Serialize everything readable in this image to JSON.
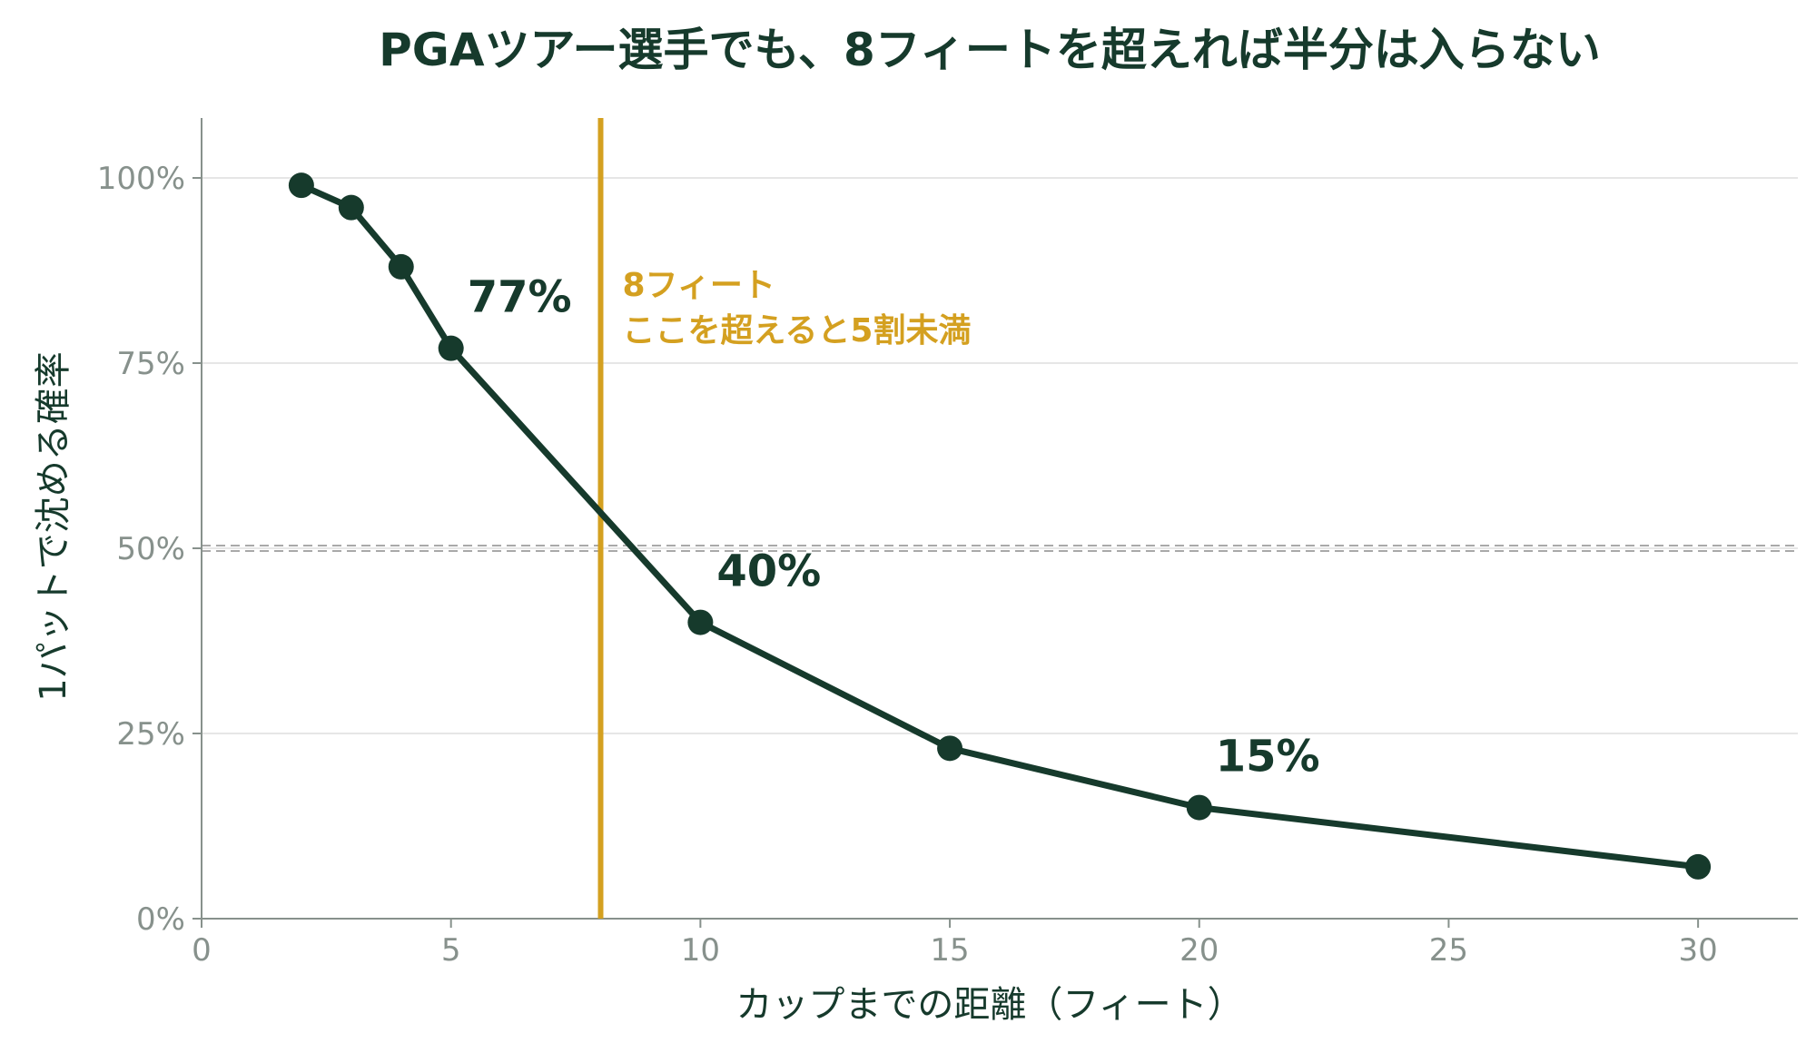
{
  "chart_data": {
    "type": "line",
    "title": "PGAツアー選手でも、8フィートを超えれば半分は入らない",
    "xlabel": "カップまでの距離（フィート）",
    "ylabel": "1パットで沈める確率",
    "xlim": [
      0,
      32
    ],
    "ylim": [
      0,
      108
    ],
    "x_ticks": [
      0,
      5,
      10,
      15,
      20,
      25,
      30
    ],
    "y_ticks": [
      0,
      25,
      50,
      75,
      100
    ],
    "y_tick_labels": [
      "0%",
      "25%",
      "50%",
      "75%",
      "100%"
    ],
    "grid": "horizontal",
    "series": [
      {
        "x": [
          2,
          3,
          4,
          5,
          10,
          15,
          20,
          30
        ],
        "y": [
          99,
          96,
          88,
          77,
          40,
          23,
          15,
          7
        ]
      }
    ],
    "data_labels": [
      {
        "x": 5,
        "y": 77,
        "text": "77%"
      },
      {
        "x": 10,
        "y": 40,
        "text": "40%"
      },
      {
        "x": 20,
        "y": 15,
        "text": "15%"
      }
    ],
    "reference_line": {
      "y": 50,
      "style": "dashed"
    },
    "vertical_marker": {
      "x": 8,
      "label_lines": [
        "8フィート",
        "ここを超えると5割未満"
      ]
    },
    "colors": {
      "line": "#163a2c",
      "marker": "#d4a020",
      "grid": "#e6e6e6",
      "axis": "#87918c",
      "text": "#163a2c"
    }
  }
}
